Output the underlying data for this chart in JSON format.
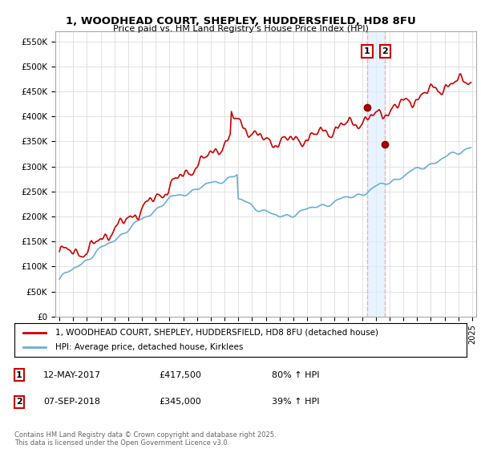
{
  "title": "1, WOODHEAD COURT, SHEPLEY, HUDDERSFIELD, HD8 8FU",
  "subtitle": "Price paid vs. HM Land Registry's House Price Index (HPI)",
  "ytick_labels": [
    "£0",
    "£50K",
    "£100K",
    "£150K",
    "£200K",
    "£250K",
    "£300K",
    "£350K",
    "£400K",
    "£450K",
    "£500K",
    "£550K"
  ],
  "yticks": [
    0,
    50000,
    100000,
    150000,
    200000,
    250000,
    300000,
    350000,
    400000,
    450000,
    500000,
    550000
  ],
  "ylim": [
    0,
    570000
  ],
  "hpi_color": "#6baed6",
  "price_color": "#cc0000",
  "dashed_color": "#ffaaaa",
  "band_color": "#ddeeff",
  "transaction1_price": 417500,
  "transaction2_price": 345000,
  "transaction1_year": 2017.37,
  "transaction2_year": 2018.67,
  "legend_property": "1, WOODHEAD COURT, SHEPLEY, HUDDERSFIELD, HD8 8FU (detached house)",
  "legend_hpi": "HPI: Average price, detached house, Kirklees",
  "footnote": "Contains HM Land Registry data © Crown copyright and database right 2025.\nThis data is licensed under the Open Government Licence v3.0.",
  "background_color": "#ffffff",
  "grid_color": "#dddddd",
  "start_year": 1995,
  "end_year": 2025
}
